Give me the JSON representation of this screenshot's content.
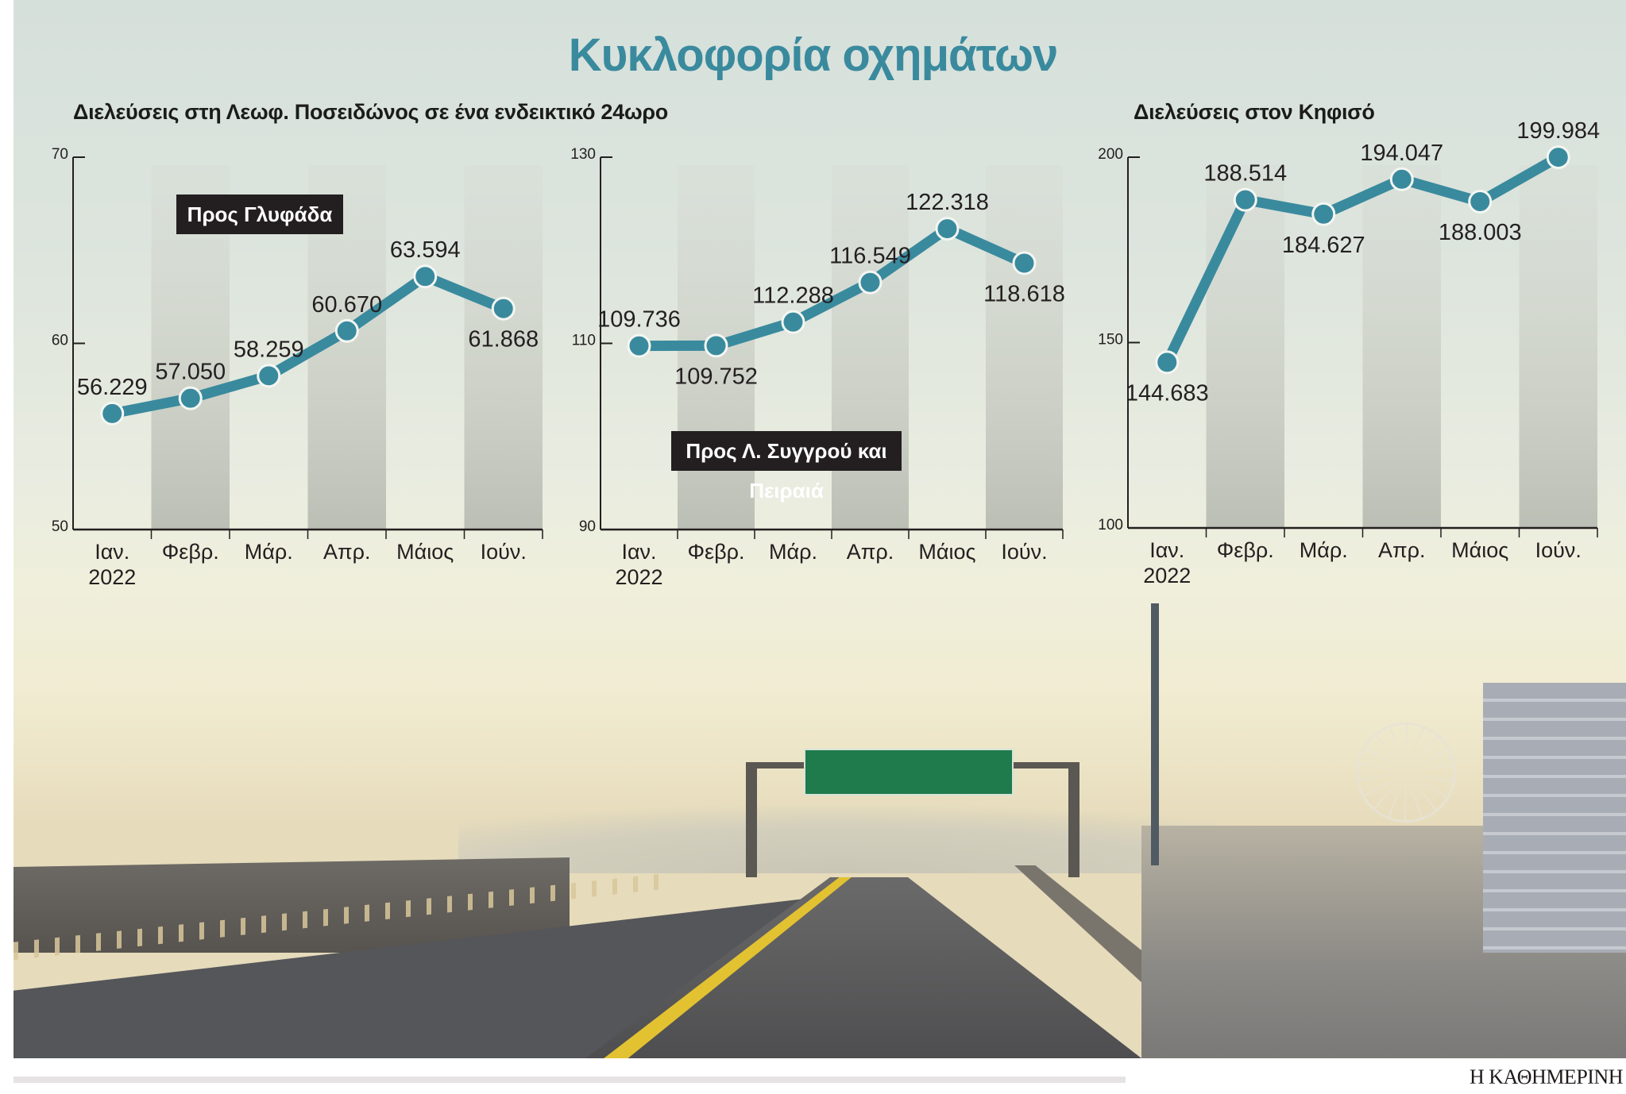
{
  "title": "Κυκλοφορία οχημάτων",
  "subtitles": {
    "left": "Διελεύσεις στη Λεωφ. Ποσειδώνος σε ένα ενδεικτικό 24ωρο",
    "right": "Διελεύσεις στον Κηφισό"
  },
  "labels": {
    "chart1": "Προς Γλυφάδα",
    "chart2": "Προς Λ. Συγγρού και Πειραιά"
  },
  "footer": {
    "brand": "Η ΚΑΘΗΜΕΡΙΝΗ"
  },
  "colors": {
    "line": "#3a8a9e",
    "title": "#3a8a9e",
    "band_dark": "#bfc3b8",
    "label_bg": "#231f20"
  },
  "chart_data": [
    {
      "type": "line",
      "title": "Διελεύσεις στη Λεωφ. Ποσειδώνος σε ένα ενδεικτικό 24ωρο — Προς Γλυφάδα",
      "annotation": "Προς Γλυφάδα",
      "categories": [
        "Ιαν.",
        "Φεβρ.",
        "Μάρ.",
        "Απρ.",
        "Μάιος",
        "Ιούν."
      ],
      "year_label": "2022",
      "values": [
        56.229,
        57.05,
        58.259,
        60.67,
        63.594,
        61.868
      ],
      "value_labels": [
        "56.229",
        "57.050",
        "58.259",
        "60.670",
        "63.594",
        "61.868"
      ],
      "label_pos": [
        "above",
        "above",
        "above",
        "above",
        "above",
        "below"
      ],
      "yticks": [
        50,
        60,
        70
      ],
      "ylim": [
        50,
        70
      ],
      "xlabel": "",
      "ylabel": "",
      "grid": false,
      "legend": null
    },
    {
      "type": "line",
      "title": "Διελεύσεις στη Λεωφ. Ποσειδώνος σε ένα ενδεικτικό 24ωρο — Προς Λ. Συγγρού και Πειραιά",
      "annotation": "Προς Λ. Συγγρού και Πειραιά",
      "categories": [
        "Ιαν.",
        "Φεβρ.",
        "Μάρ.",
        "Απρ.",
        "Μάιος",
        "Ιούν."
      ],
      "year_label": "2022",
      "values": [
        109.736,
        109.752,
        112.288,
        116.549,
        122.318,
        118.618
      ],
      "value_labels": [
        "109.736",
        "109.752",
        "112.288",
        "116.549",
        "122.318",
        "118.618"
      ],
      "label_pos": [
        "above",
        "below",
        "above",
        "above",
        "above",
        "below"
      ],
      "yticks": [
        90,
        110,
        130
      ],
      "ylim": [
        90,
        130
      ],
      "xlabel": "",
      "ylabel": "",
      "grid": false,
      "legend": null
    },
    {
      "type": "line",
      "title": "Διελεύσεις στον Κηφισό",
      "categories": [
        "Ιαν.",
        "Φεβρ.",
        "Μάρ.",
        "Απρ.",
        "Μάιος",
        "Ιούν."
      ],
      "year_label": "2022",
      "values": [
        144.683,
        188.514,
        184.627,
        194.047,
        188.003,
        199.984
      ],
      "value_labels": [
        "144.683",
        "188.514",
        "184.627",
        "194.047",
        "188.003",
        "199.984"
      ],
      "label_pos": [
        "below",
        "above",
        "below",
        "above",
        "below",
        "above"
      ],
      "yticks": [
        100,
        150,
        200
      ],
      "ylim": [
        100,
        200
      ],
      "xlabel": "",
      "ylabel": "",
      "grid": false,
      "legend": null
    }
  ]
}
